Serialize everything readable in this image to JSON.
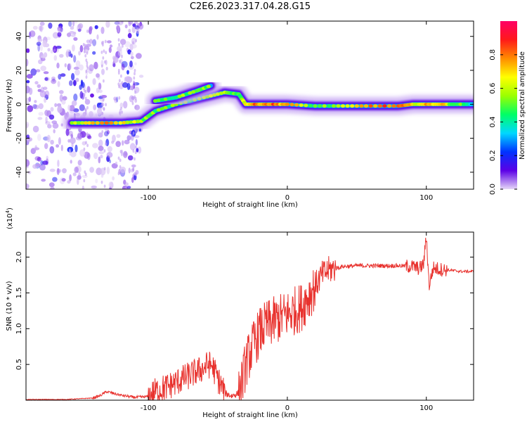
{
  "title": "C2E6.2023.317.04.28.G15",
  "chart_data": [
    {
      "type": "heatmap",
      "xlabel": "Height of straight line (km)",
      "ylabel": "Frequency (Hz)",
      "xlim": [
        -188,
        134
      ],
      "ylim": [
        -50,
        49
      ],
      "x_ticks": [
        -100,
        0,
        100
      ],
      "x_tick_labels": [
        "-100",
        "0",
        "100"
      ],
      "y_ticks": [
        -40,
        -20,
        0,
        20,
        40
      ],
      "y_tick_labels": [
        "-40",
        "-20",
        "0",
        "20",
        "40"
      ],
      "colorbar": {
        "label": "Normalized spectral amplitude",
        "range": [
          0,
          1
        ],
        "ticks": [
          0.0,
          0.2,
          0.4,
          0.6,
          0.8
        ],
        "tick_labels": [
          "0.0",
          "0.2",
          "0.4",
          "0.6",
          "0.8"
        ],
        "colormap": [
          "#e6d7f7",
          "#5b00e6",
          "#0033ff",
          "#00d8ff",
          "#00ff66",
          "#9bff00",
          "#ffff00",
          "#ff8c00",
          "#ff1a1a",
          "#ff0066"
        ]
      },
      "noise_region": {
        "x_range": [
          -188,
          -105
        ],
        "y_range": [
          -50,
          49
        ],
        "amplitude": 0.15
      },
      "ridge": {
        "x": [
          -155,
          -140,
          -120,
          -105,
          -95,
          -80,
          -60,
          -45,
          -35,
          -30,
          -20,
          -10,
          0,
          20,
          40,
          60,
          80,
          90,
          100,
          110,
          120,
          134
        ],
        "frequency": [
          -11,
          -11,
          -11,
          -10,
          -4,
          0,
          4,
          7,
          6,
          0,
          0,
          0,
          0,
          -1,
          -1,
          -1,
          -1,
          0,
          0,
          0,
          0,
          0
        ],
        "amplitude": [
          0.55,
          0.75,
          0.7,
          0.55,
          0.5,
          0.5,
          0.55,
          0.6,
          0.45,
          0.7,
          0.8,
          0.8,
          0.75,
          0.5,
          0.55,
          0.8,
          0.8,
          0.65,
          0.7,
          0.75,
          0.5,
          0.4
        ]
      },
      "secondary_ridge": {
        "x": [
          -95,
          -80,
          -65,
          -55
        ],
        "frequency": [
          2,
          4,
          8,
          11
        ],
        "amplitude": [
          0.45,
          0.5,
          0.55,
          0.5
        ]
      }
    },
    {
      "type": "line",
      "xlabel": "Height of straight line (km)",
      "ylabel": "SNR (10 * v/v)",
      "y_multiplier_label": "(x10",
      "y_multiplier_exponent": "4",
      "y_multiplier_suffix": ")",
      "xlim": [
        -188,
        134
      ],
      "ylim": [
        0,
        2.35
      ],
      "x_ticks": [
        -100,
        0,
        100
      ],
      "x_tick_labels": [
        "-100",
        "0",
        "100"
      ],
      "y_ticks": [
        0.5,
        1.0,
        1.5,
        2.0
      ],
      "y_tick_labels": [
        "0.5",
        "1.0",
        "1.5",
        "2.0"
      ],
      "color": "#e8322e",
      "series": [
        {
          "x": [
            -188,
            -160,
            -150,
            -140,
            -135,
            -130,
            -120,
            -110,
            -100,
            -95,
            -85,
            -75,
            -70,
            -65,
            -60,
            -57,
            -54,
            -50,
            -45,
            -40,
            -35,
            -32,
            -30,
            -25,
            -20,
            -15,
            -10,
            -5,
            0,
            5,
            10,
            15,
            20,
            25,
            30,
            40,
            50,
            60,
            70,
            80,
            90,
            95,
            98,
            100,
            102,
            105,
            110,
            115,
            120,
            125,
            134
          ],
          "y": [
            0.01,
            0.01,
            0.02,
            0.03,
            0.06,
            0.12,
            0.07,
            0.04,
            0.05,
            0.12,
            0.2,
            0.3,
            0.35,
            0.4,
            0.45,
            0.5,
            0.48,
            0.3,
            0.1,
            0.06,
            0.1,
            0.3,
            0.5,
            0.75,
            0.95,
            1.05,
            1.1,
            1.15,
            1.2,
            1.25,
            1.3,
            1.45,
            1.6,
            1.75,
            1.82,
            1.87,
            1.88,
            1.88,
            1.88,
            1.88,
            1.87,
            1.84,
            1.9,
            2.3,
            1.6,
            1.85,
            1.83,
            1.82,
            1.81,
            1.8,
            1.8
          ]
        }
      ]
    }
  ]
}
